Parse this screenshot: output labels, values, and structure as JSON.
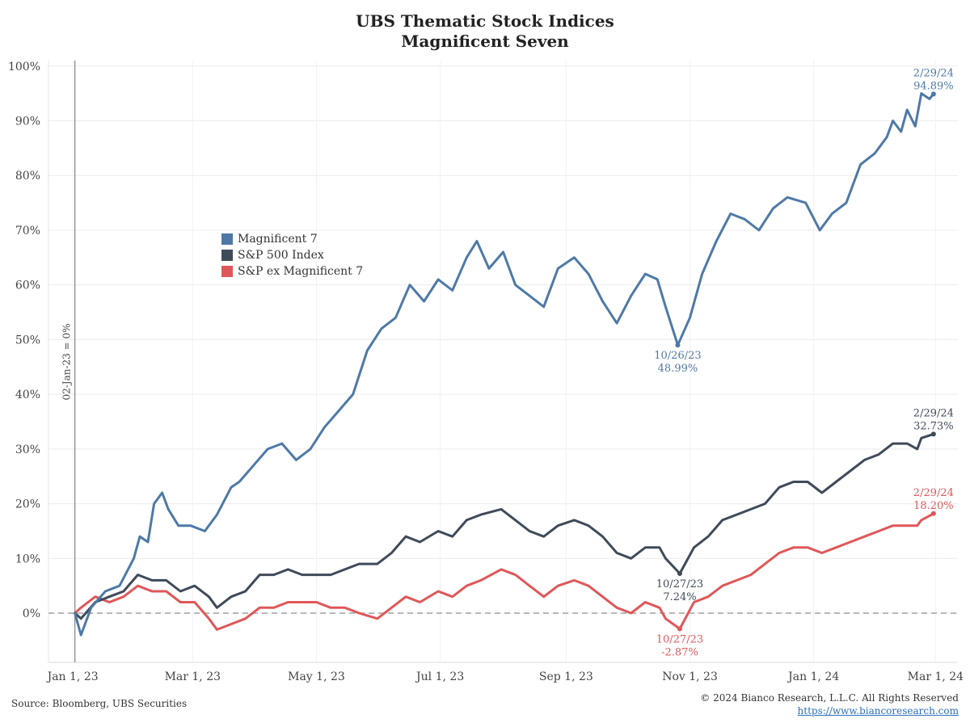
{
  "title": "UBS Thematic Stock Indices",
  "subtitle": "Magnificent Seven",
  "source": "Source: Bloomberg, UBS Securities",
  "copyright": "© 2024 Bianco Research, L.L.C. All Rights Reserved",
  "website": "https://www.biancoresearch.com",
  "baseline_label": "02-Jan-23 = 0%",
  "colors": {
    "mag7": "#4e79a7",
    "sp500": "#3f4a5a",
    "spex": "#e05759"
  },
  "chart_data": {
    "type": "line",
    "x_axis_type": "date",
    "xlim": [
      "2022-12-20",
      "2024-03-12"
    ],
    "ylim": [
      -9,
      101
    ],
    "x_ticks": [
      {
        "date": "2023-01-01",
        "label": "Jan 1, 23"
      },
      {
        "date": "2023-03-01",
        "label": "Mar 1, 23"
      },
      {
        "date": "2023-05-01",
        "label": "May 1, 23"
      },
      {
        "date": "2023-07-01",
        "label": "Jul 1, 23"
      },
      {
        "date": "2023-09-01",
        "label": "Sep 1, 23"
      },
      {
        "date": "2023-11-01",
        "label": "Nov 1, 23"
      },
      {
        "date": "2024-01-01",
        "label": "Jan 1, 24"
      },
      {
        "date": "2024-03-01",
        "label": "Mar 1, 24"
      }
    ],
    "y_ticks": [
      0,
      10,
      20,
      30,
      40,
      50,
      60,
      70,
      80,
      90,
      100
    ],
    "y_tick_format": "percent",
    "grid": true,
    "legend_position": "upper-left",
    "series": [
      {
        "name": "Magnificent 7",
        "color_key": "mag7",
        "points": [
          [
            "2023-01-02",
            0
          ],
          [
            "2023-01-05",
            -4
          ],
          [
            "2023-01-10",
            1
          ],
          [
            "2023-01-17",
            4
          ],
          [
            "2023-01-24",
            5
          ],
          [
            "2023-01-31",
            10
          ],
          [
            "2023-02-03",
            14
          ],
          [
            "2023-02-07",
            13
          ],
          [
            "2023-02-10",
            20
          ],
          [
            "2023-02-14",
            22
          ],
          [
            "2023-02-17",
            19
          ],
          [
            "2023-02-22",
            16
          ],
          [
            "2023-02-28",
            16
          ],
          [
            "2023-03-07",
            15
          ],
          [
            "2023-03-13",
            18
          ],
          [
            "2023-03-20",
            23
          ],
          [
            "2023-03-24",
            24
          ],
          [
            "2023-03-31",
            27
          ],
          [
            "2023-04-07",
            30
          ],
          [
            "2023-04-14",
            31
          ],
          [
            "2023-04-21",
            28
          ],
          [
            "2023-04-28",
            30
          ],
          [
            "2023-05-05",
            34
          ],
          [
            "2023-05-12",
            37
          ],
          [
            "2023-05-19",
            40
          ],
          [
            "2023-05-26",
            48
          ],
          [
            "2023-06-02",
            52
          ],
          [
            "2023-06-09",
            54
          ],
          [
            "2023-06-16",
            60
          ],
          [
            "2023-06-23",
            57
          ],
          [
            "2023-06-30",
            61
          ],
          [
            "2023-07-07",
            59
          ],
          [
            "2023-07-14",
            65
          ],
          [
            "2023-07-19",
            68
          ],
          [
            "2023-07-25",
            63
          ],
          [
            "2023-08-01",
            66
          ],
          [
            "2023-08-07",
            60
          ],
          [
            "2023-08-14",
            58
          ],
          [
            "2023-08-21",
            56
          ],
          [
            "2023-08-28",
            63
          ],
          [
            "2023-09-05",
            65
          ],
          [
            "2023-09-12",
            62
          ],
          [
            "2023-09-19",
            57
          ],
          [
            "2023-09-26",
            53
          ],
          [
            "2023-10-03",
            58
          ],
          [
            "2023-10-10",
            62
          ],
          [
            "2023-10-16",
            61
          ],
          [
            "2023-10-20",
            56
          ],
          [
            "2023-10-26",
            48.99
          ],
          [
            "2023-11-01",
            54
          ],
          [
            "2023-11-07",
            62
          ],
          [
            "2023-11-14",
            68
          ],
          [
            "2023-11-21",
            73
          ],
          [
            "2023-11-28",
            72
          ],
          [
            "2023-12-05",
            70
          ],
          [
            "2023-12-12",
            74
          ],
          [
            "2023-12-19",
            76
          ],
          [
            "2023-12-28",
            75
          ],
          [
            "2024-01-04",
            70
          ],
          [
            "2024-01-10",
            73
          ],
          [
            "2024-01-17",
            75
          ],
          [
            "2024-01-24",
            82
          ],
          [
            "2024-01-31",
            84
          ],
          [
            "2024-02-06",
            87
          ],
          [
            "2024-02-09",
            90
          ],
          [
            "2024-02-13",
            88
          ],
          [
            "2024-02-16",
            92
          ],
          [
            "2024-02-20",
            89
          ],
          [
            "2024-02-23",
            95
          ],
          [
            "2024-02-27",
            94
          ],
          [
            "2024-02-29",
            94.89
          ]
        ],
        "annotations": [
          {
            "date": "2023-10-26",
            "value": 48.99,
            "label_date": "10/26/23",
            "label_value": "48.99%",
            "position": "below"
          },
          {
            "date": "2024-02-29",
            "value": 94.89,
            "label_date": "2/29/24",
            "label_value": "94.89%",
            "position": "above"
          }
        ]
      },
      {
        "name": "S&P 500 Index",
        "color_key": "sp500",
        "points": [
          [
            "2023-01-02",
            0
          ],
          [
            "2023-01-05",
            -1
          ],
          [
            "2023-01-12",
            2
          ],
          [
            "2023-01-19",
            3
          ],
          [
            "2023-01-26",
            4
          ],
          [
            "2023-02-02",
            7
          ],
          [
            "2023-02-09",
            6
          ],
          [
            "2023-02-16",
            6
          ],
          [
            "2023-02-23",
            4
          ],
          [
            "2023-03-02",
            5
          ],
          [
            "2023-03-09",
            3
          ],
          [
            "2023-03-13",
            1
          ],
          [
            "2023-03-20",
            3
          ],
          [
            "2023-03-27",
            4
          ],
          [
            "2023-04-03",
            7
          ],
          [
            "2023-04-10",
            7
          ],
          [
            "2023-04-17",
            8
          ],
          [
            "2023-04-24",
            7
          ],
          [
            "2023-05-01",
            7
          ],
          [
            "2023-05-08",
            7
          ],
          [
            "2023-05-15",
            8
          ],
          [
            "2023-05-22",
            9
          ],
          [
            "2023-05-31",
            9
          ],
          [
            "2023-06-07",
            11
          ],
          [
            "2023-06-14",
            14
          ],
          [
            "2023-06-21",
            13
          ],
          [
            "2023-06-30",
            15
          ],
          [
            "2023-07-07",
            14
          ],
          [
            "2023-07-14",
            17
          ],
          [
            "2023-07-21",
            18
          ],
          [
            "2023-07-31",
            19
          ],
          [
            "2023-08-07",
            17
          ],
          [
            "2023-08-14",
            15
          ],
          [
            "2023-08-21",
            14
          ],
          [
            "2023-08-28",
            16
          ],
          [
            "2023-09-05",
            17
          ],
          [
            "2023-09-12",
            16
          ],
          [
            "2023-09-19",
            14
          ],
          [
            "2023-09-26",
            11
          ],
          [
            "2023-10-03",
            10
          ],
          [
            "2023-10-10",
            12
          ],
          [
            "2023-10-17",
            12
          ],
          [
            "2023-10-20",
            10
          ],
          [
            "2023-10-27",
            7.24
          ],
          [
            "2023-11-03",
            12
          ],
          [
            "2023-11-10",
            14
          ],
          [
            "2023-11-17",
            17
          ],
          [
            "2023-11-24",
            18
          ],
          [
            "2023-12-01",
            19
          ],
          [
            "2023-12-08",
            20
          ],
          [
            "2023-12-15",
            23
          ],
          [
            "2023-12-22",
            24
          ],
          [
            "2023-12-29",
            24
          ],
          [
            "2024-01-05",
            22
          ],
          [
            "2024-01-12",
            24
          ],
          [
            "2024-01-19",
            26
          ],
          [
            "2024-01-26",
            28
          ],
          [
            "2024-02-02",
            29
          ],
          [
            "2024-02-09",
            31
          ],
          [
            "2024-02-16",
            31
          ],
          [
            "2024-02-21",
            30
          ],
          [
            "2024-02-23",
            32
          ],
          [
            "2024-02-29",
            32.73
          ]
        ],
        "annotations": [
          {
            "date": "2023-10-27",
            "value": 7.24,
            "label_date": "10/27/23",
            "label_value": "7.24%",
            "position": "below"
          },
          {
            "date": "2024-02-29",
            "value": 32.73,
            "label_date": "2/29/24",
            "label_value": "32.73%",
            "position": "above"
          }
        ]
      },
      {
        "name": "S&P ex Magnificent 7",
        "color_key": "spex",
        "points": [
          [
            "2023-01-02",
            0
          ],
          [
            "2023-01-05",
            1
          ],
          [
            "2023-01-12",
            3
          ],
          [
            "2023-01-19",
            2
          ],
          [
            "2023-01-26",
            3
          ],
          [
            "2023-02-02",
            5
          ],
          [
            "2023-02-09",
            4
          ],
          [
            "2023-02-16",
            4
          ],
          [
            "2023-02-23",
            2
          ],
          [
            "2023-03-02",
            2
          ],
          [
            "2023-03-09",
            -1
          ],
          [
            "2023-03-13",
            -3
          ],
          [
            "2023-03-20",
            -2
          ],
          [
            "2023-03-27",
            -1
          ],
          [
            "2023-04-03",
            1
          ],
          [
            "2023-04-10",
            1
          ],
          [
            "2023-04-17",
            2
          ],
          [
            "2023-04-24",
            2
          ],
          [
            "2023-05-01",
            2
          ],
          [
            "2023-05-08",
            1
          ],
          [
            "2023-05-15",
            1
          ],
          [
            "2023-05-22",
            0
          ],
          [
            "2023-05-31",
            -1
          ],
          [
            "2023-06-07",
            1
          ],
          [
            "2023-06-14",
            3
          ],
          [
            "2023-06-21",
            2
          ],
          [
            "2023-06-30",
            4
          ],
          [
            "2023-07-07",
            3
          ],
          [
            "2023-07-14",
            5
          ],
          [
            "2023-07-21",
            6
          ],
          [
            "2023-07-31",
            8
          ],
          [
            "2023-08-07",
            7
          ],
          [
            "2023-08-14",
            5
          ],
          [
            "2023-08-21",
            3
          ],
          [
            "2023-08-28",
            5
          ],
          [
            "2023-09-05",
            6
          ],
          [
            "2023-09-12",
            5
          ],
          [
            "2023-09-19",
            3
          ],
          [
            "2023-09-26",
            1
          ],
          [
            "2023-10-03",
            0
          ],
          [
            "2023-10-10",
            2
          ],
          [
            "2023-10-17",
            1
          ],
          [
            "2023-10-20",
            -1
          ],
          [
            "2023-10-27",
            -2.87
          ],
          [
            "2023-11-03",
            2
          ],
          [
            "2023-11-10",
            3
          ],
          [
            "2023-11-17",
            5
          ],
          [
            "2023-11-24",
            6
          ],
          [
            "2023-12-01",
            7
          ],
          [
            "2023-12-08",
            9
          ],
          [
            "2023-12-15",
            11
          ],
          [
            "2023-12-22",
            12
          ],
          [
            "2023-12-29",
            12
          ],
          [
            "2024-01-05",
            11
          ],
          [
            "2024-01-12",
            12
          ],
          [
            "2024-01-19",
            13
          ],
          [
            "2024-01-26",
            14
          ],
          [
            "2024-02-02",
            15
          ],
          [
            "2024-02-09",
            16
          ],
          [
            "2024-02-16",
            16
          ],
          [
            "2024-02-21",
            16
          ],
          [
            "2024-02-23",
            17
          ],
          [
            "2024-02-29",
            18.2
          ]
        ],
        "annotations": [
          {
            "date": "2023-10-27",
            "value": -2.87,
            "label_date": "10/27/23",
            "label_value": "-2.87%",
            "position": "below"
          },
          {
            "date": "2024-02-29",
            "value": 18.2,
            "label_date": "2/29/24",
            "label_value": "18.20%",
            "position": "above"
          }
        ]
      }
    ]
  }
}
